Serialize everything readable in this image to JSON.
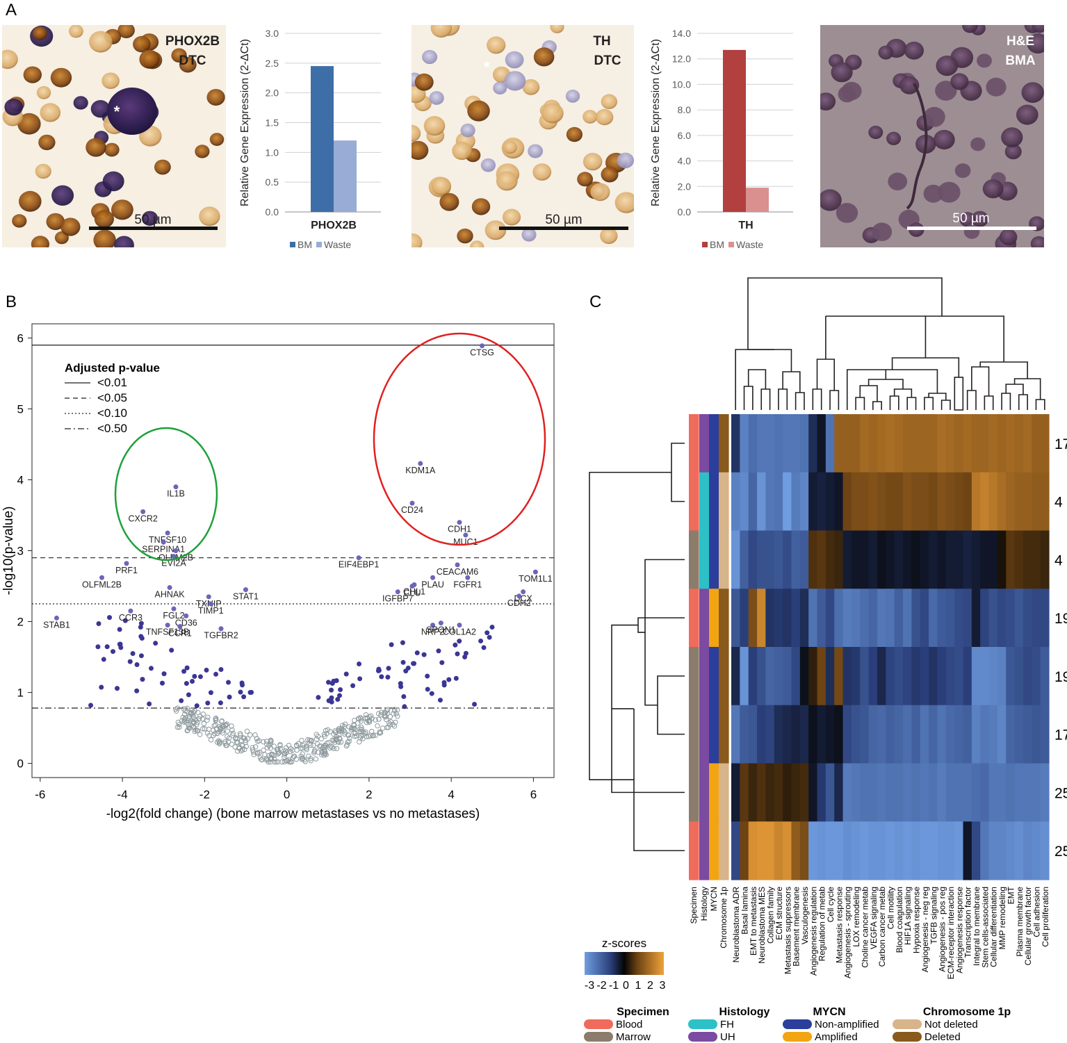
{
  "panels": {
    "a": "A",
    "b": "B",
    "c": "C"
  },
  "micrographs": [
    {
      "line1": "PHOX2B",
      "line2": "DTC",
      "scale": "50 µm",
      "star": "*"
    },
    {
      "line1": "TH",
      "line2": "DTC",
      "scale": "50 µm",
      "star": "*"
    },
    {
      "line1": "H&E",
      "line2": "BMA",
      "scale": "50 µm"
    }
  ],
  "colors": {
    "phox_bm": "#3e6ea8",
    "phox_waste": "#98acd5",
    "th_bm": "#b1403f",
    "th_waste": "#d9908f",
    "filled": "#3b3694",
    "open": "#8e9a9e",
    "green": "#1ea03a",
    "red": "#e02020",
    "blood": "#ef6b5b",
    "marrow": "#8b7c6c",
    "fh": "#2dc0c6",
    "uh": "#7b4aa1",
    "nonamp": "#2b3e9c",
    "amp": "#f2a413",
    "notdel": "#d8b48a",
    "del": "#8a5a1c"
  },
  "chart_data": [
    {
      "type": "bar",
      "title": "",
      "xlabel": "PHOX2B",
      "ylabel": "Relative Gene Expression (2-ΔCt)",
      "ylim": [
        0,
        3.0
      ],
      "ticks": [
        "0.0",
        "0.5",
        "1.0",
        "1.5",
        "2.0",
        "2.5",
        "3.0"
      ],
      "series": [
        {
          "name": "BM",
          "values": [
            2.45
          ]
        },
        {
          "name": "Waste",
          "values": [
            1.2
          ]
        }
      ],
      "legend": [
        "BM",
        "Waste"
      ]
    },
    {
      "type": "bar",
      "title": "",
      "xlabel": "TH",
      "ylabel": "Relative Gene Expression (2-ΔCt)",
      "ylim": [
        0,
        14.0
      ],
      "ticks": [
        "0.0",
        "2.0",
        "4.0",
        "6.0",
        "8.0",
        "10.0",
        "12.0",
        "14.0"
      ],
      "series": [
        {
          "name": "BM",
          "values": [
            12.7
          ]
        },
        {
          "name": "Waste",
          "values": [
            1.9
          ]
        }
      ],
      "legend": [
        "BM",
        "Waste"
      ]
    },
    {
      "type": "scatter",
      "title": "",
      "xlabel": "-log2(fold change) (bone marrow metastases vs no metastases)",
      "ylabel": "-log10(p-value)",
      "xlim": [
        -6.2,
        6.5
      ],
      "ylim": [
        -0.2,
        6.2
      ],
      "xticks": [
        -6,
        -4,
        -2,
        0,
        2,
        4,
        6
      ],
      "yticks": [
        0,
        1,
        2,
        3,
        4,
        5,
        6
      ],
      "legend_title": "Adjusted p-value",
      "thresholds": [
        {
          "label": "<0.01",
          "y": 5.9,
          "style": "solid"
        },
        {
          "label": "<0.05",
          "y": 2.9,
          "style": "dashed"
        },
        {
          "label": "<0.10",
          "y": 2.25,
          "style": "dotted"
        },
        {
          "label": "<0.50",
          "y": 0.78,
          "style": "dashdot"
        }
      ],
      "genes": [
        {
          "name": "CTSG",
          "x": 4.75,
          "y": 5.89
        },
        {
          "name": "KDM1A",
          "x": 3.25,
          "y": 4.23
        },
        {
          "name": "CD24",
          "x": 3.05,
          "y": 3.67
        },
        {
          "name": "CDH1",
          "x": 4.2,
          "y": 3.4
        },
        {
          "name": "MUC1",
          "x": 4.35,
          "y": 3.22
        },
        {
          "name": "IL1B",
          "x": -2.7,
          "y": 3.9
        },
        {
          "name": "CXCR2",
          "x": -3.5,
          "y": 3.55
        },
        {
          "name": "TNFSF10",
          "x": -2.9,
          "y": 3.25
        },
        {
          "name": "SERPINA1",
          "x": -3.0,
          "y": 3.12
        },
        {
          "name": "OLFM2B",
          "x": -2.7,
          "y": 3.0
        },
        {
          "name": "EVI2A",
          "x": -2.75,
          "y": 2.92
        },
        {
          "name": "PRF1",
          "x": -3.9,
          "y": 2.82
        },
        {
          "name": "OLFML2B",
          "x": -4.5,
          "y": 2.62
        },
        {
          "name": "EIF4EBP1",
          "x": 1.75,
          "y": 2.9
        },
        {
          "name": "CEACAM6",
          "x": 4.15,
          "y": 2.8
        },
        {
          "name": "PLAU",
          "x": 3.55,
          "y": 2.62
        },
        {
          "name": "FGFR1",
          "x": 4.4,
          "y": 2.62
        },
        {
          "name": "TOM1L1",
          "x": 6.05,
          "y": 2.7
        },
        {
          "name": "CHL1",
          "x": 3.1,
          "y": 2.52
        },
        {
          "name": "CLU",
          "x": 3.05,
          "y": 2.5
        },
        {
          "name": "IGFBP7",
          "x": 2.7,
          "y": 2.42
        },
        {
          "name": "DCX",
          "x": 5.75,
          "y": 2.42
        },
        {
          "name": "CDH2",
          "x": 5.65,
          "y": 2.36
        },
        {
          "name": "AHNAK",
          "x": -2.85,
          "y": 2.48
        },
        {
          "name": "STAT1",
          "x": -1.0,
          "y": 2.45
        },
        {
          "name": "TXNIP",
          "x": -1.9,
          "y": 2.35
        },
        {
          "name": "TIMP1",
          "x": -1.85,
          "y": 2.25
        },
        {
          "name": "CCR3",
          "x": -3.8,
          "y": 2.15
        },
        {
          "name": "FGL2",
          "x": -2.75,
          "y": 2.18
        },
        {
          "name": "CD36",
          "x": -2.45,
          "y": 2.08
        },
        {
          "name": "TNFSF13B",
          "x": -2.9,
          "y": 1.95
        },
        {
          "name": "CCR1",
          "x": -2.6,
          "y": 1.93
        },
        {
          "name": "TGFBR2",
          "x": -1.6,
          "y": 1.9
        },
        {
          "name": "STAB1",
          "x": -5.6,
          "y": 2.05
        },
        {
          "name": "NRP2",
          "x": 3.55,
          "y": 1.95
        },
        {
          "name": "COL1A2",
          "x": 4.2,
          "y": 1.95
        },
        {
          "name": "SPON1",
          "x": 3.75,
          "y": 1.98
        }
      ]
    },
    {
      "type": "heatmap",
      "title": "",
      "rows": [
        "17",
        "4",
        "4",
        "19",
        "19",
        "17",
        "25",
        "25"
      ],
      "columns": [
        "Neuroblastoma ADR",
        "Basal lamina",
        "EMT to metastasis",
        "Neuroblastoma MES",
        "Collagen family",
        "ECM structure",
        "Metastasis suppressors",
        "Basement membrane",
        "Vasculogenesis",
        "Angiogenesis regulation",
        "Regulation of metab",
        "Cell cycle",
        "Metastasis response",
        "Angiogenesis - sprouting",
        "LOX remodeling",
        "Choline cancer metab",
        "VEGFA signaling",
        "Carbon cancer metab",
        "Cell motility",
        "Blood coagulation",
        "HIF1A signaling",
        "Hypoxia response",
        "Angiogenesis - neg reg",
        "TGFB signaling",
        "Angiogenesis - pos reg",
        "ECM-receptor interaction",
        "Angiogenesis response",
        "Transcription factor",
        "Integral to membrane",
        "Stem cells-associated",
        "Cellular differentiation",
        "MMP remodeling",
        "EMT",
        "Plasma membrane",
        "Cellular growth factor",
        "Cell adhesion",
        "Cell proliferation"
      ],
      "annotations": [
        "Specimen",
        "Histology",
        "MYCN",
        "Chromosome 1p"
      ],
      "z_scale_title": "z-scores",
      "z_ticks": [
        "-3",
        "-2",
        "-1",
        "0",
        "1",
        "2",
        "3"
      ],
      "values": [
        [
          -0.8,
          -2.4,
          -2.0,
          -2.2,
          -2.2,
          -2.1,
          -2.2,
          -2.2,
          -2.1,
          -0.7,
          -0.3,
          -2.1,
          1.6,
          1.6,
          1.6,
          1.8,
          1.7,
          1.8,
          1.9,
          1.8,
          1.7,
          1.7,
          1.7,
          1.7,
          1.9,
          1.8,
          1.7,
          1.8,
          1.7,
          1.7,
          1.8,
          1.7,
          1.8,
          1.7,
          1.8,
          1.6,
          1.6
        ],
        [
          -2.4,
          -2.6,
          -1.8,
          -2.8,
          -2.2,
          -2.1,
          -3.0,
          -2.3,
          -2.5,
          -0.4,
          -0.5,
          -0.4,
          -0.3,
          1.0,
          1.2,
          1.2,
          1.3,
          1.2,
          1.1,
          1.1,
          1.3,
          1.2,
          1.2,
          1.1,
          1.3,
          1.2,
          1.1,
          1.0,
          2.1,
          2.3,
          2.1,
          1.9,
          1.7,
          1.6,
          1.6,
          1.5,
          1.5
        ],
        [
          -2.8,
          -1.7,
          -1.2,
          -1.4,
          -1.4,
          -1.5,
          -1.3,
          -1.7,
          -1.6,
          0.7,
          0.8,
          0.6,
          0.5,
          -0.4,
          -0.3,
          -0.3,
          -0.4,
          -0.2,
          -0.3,
          -0.4,
          -0.3,
          -0.2,
          -0.3,
          -0.4,
          -0.3,
          -0.4,
          -0.4,
          -0.5,
          -0.4,
          -0.3,
          -0.3,
          0.2,
          0.8,
          0.7,
          0.6,
          0.6,
          0.5
        ],
        [
          -1.5,
          -1.0,
          1.2,
          2.4,
          -0.8,
          -0.9,
          -0.8,
          -1.0,
          -0.7,
          -2.1,
          -1.6,
          -1.2,
          -2.0,
          -2.3,
          -2.2,
          -2.0,
          -1.8,
          -2.2,
          -2.1,
          -1.7,
          -2.1,
          -1.4,
          -1.2,
          -1.9,
          -1.6,
          -1.5,
          -1.3,
          -1.2,
          -0.4,
          -1.1,
          -1.4,
          -1.2,
          -1.3,
          -1.5,
          -1.3,
          -1.2,
          -1.2
        ],
        [
          -0.6,
          -2.8,
          -1.0,
          -1.4,
          -1.8,
          -1.7,
          -1.6,
          -1.2,
          -0.2,
          0.4,
          1.0,
          -0.7,
          1.1,
          -0.8,
          -0.9,
          -1.4,
          -1.0,
          -0.6,
          -1.1,
          -1.3,
          -1.1,
          -0.9,
          -1.0,
          -0.8,
          -1.0,
          -1.2,
          -1.3,
          -1.0,
          -2.6,
          -2.6,
          -2.5,
          -2.4,
          -1.5,
          -1.4,
          -1.2,
          -1.3,
          -1.6
        ],
        [
          -2.2,
          -1.6,
          -1.5,
          -1.0,
          -1.1,
          -0.7,
          -0.6,
          -0.5,
          -0.6,
          -0.2,
          -0.4,
          -0.3,
          -0.2,
          -1.2,
          -1.4,
          -1.5,
          -1.8,
          -1.9,
          -1.7,
          -1.8,
          -2.0,
          -1.7,
          -2.1,
          -1.8,
          -2.1,
          -1.9,
          -1.8,
          -1.7,
          -2.4,
          -2.2,
          -2.3,
          -2.5,
          -1.8,
          -1.7,
          -1.6,
          -1.5,
          -1.6
        ],
        [
          -0.4,
          0.8,
          0.5,
          0.7,
          0.5,
          0.6,
          0.4,
          0.5,
          0.6,
          -0.3,
          -0.9,
          -1.5,
          -0.6,
          -2.3,
          -2.2,
          -2.1,
          -2.1,
          -2.2,
          -2.1,
          -2.1,
          -2.2,
          -2.1,
          -2.2,
          -2.1,
          -2.3,
          -2.1,
          -2.1,
          -2.1,
          -2.0,
          -1.9,
          -2.2,
          -2.2,
          -2.1,
          -2.2,
          -2.2,
          -2.2,
          -2.3
        ],
        [
          -1.2,
          1.0,
          2.6,
          2.7,
          2.7,
          2.4,
          2.6,
          1.5,
          1.2,
          -2.9,
          -2.8,
          -2.9,
          -2.9,
          -2.7,
          -2.8,
          -2.9,
          -2.8,
          -2.8,
          -2.9,
          -2.8,
          -2.9,
          -2.8,
          -2.9,
          -2.9,
          -2.8,
          -2.8,
          -2.9,
          -0.3,
          -1.2,
          -2.2,
          -2.5,
          -2.5,
          -2.6,
          -2.7,
          -2.5,
          -2.6,
          -2.7
        ]
      ],
      "row_annotations": [
        [
          "blood",
          "uh",
          "nonamp",
          "del"
        ],
        [
          "blood",
          "fh",
          "nonamp",
          "notdel"
        ],
        [
          "marrow",
          "fh",
          "nonamp",
          "notdel"
        ],
        [
          "blood",
          "uh",
          "amp",
          "del"
        ],
        [
          "marrow",
          "uh",
          "nonamp",
          "del"
        ],
        [
          "marrow",
          "uh",
          "nonamp",
          "del"
        ],
        [
          "marrow",
          "uh",
          "amp",
          "notdel"
        ],
        [
          "blood",
          "uh",
          "amp",
          "notdel"
        ]
      ],
      "legend_groups": [
        {
          "title": "Specimen",
          "items": [
            {
              "label": "Blood",
              "key": "blood"
            },
            {
              "label": "Marrow",
              "key": "marrow"
            }
          ]
        },
        {
          "title": "Histology",
          "items": [
            {
              "label": "FH",
              "key": "fh"
            },
            {
              "label": "UH",
              "key": "uh"
            }
          ]
        },
        {
          "title": "MYCN",
          "items": [
            {
              "label": "Non-amplified",
              "key": "nonamp"
            },
            {
              "label": "Amplified",
              "key": "amp"
            }
          ]
        },
        {
          "title": "Chromosome 1p",
          "items": [
            {
              "label": "Not deleted",
              "key": "notdel"
            },
            {
              "label": "Deleted",
              "key": "del"
            }
          ]
        }
      ]
    }
  ]
}
